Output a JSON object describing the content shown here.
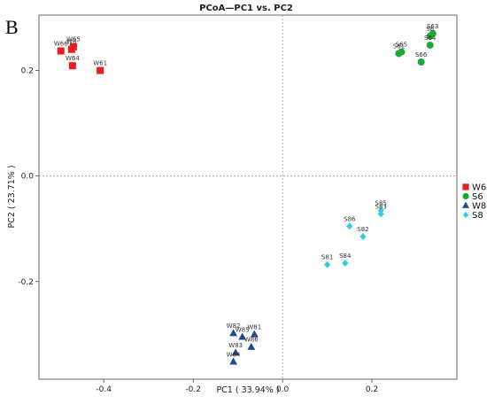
{
  "panel_label": "B",
  "chart_data": {
    "type": "scatter",
    "title": "PCoA—PC1 vs. PC2",
    "xlabel": "PC1 ( 33.94% )",
    "ylabel": "PC2 ( 23.71% )",
    "xlim": [
      -0.545,
      0.39
    ],
    "ylim": [
      -0.385,
      0.305
    ],
    "x_ticks": [
      {
        "value": -0.4,
        "label": "-0.4"
      },
      {
        "value": -0.2,
        "label": "-0.2"
      },
      {
        "value": 0.0,
        "label": "0.0"
      },
      {
        "value": 0.2,
        "label": "0.2"
      }
    ],
    "y_ticks": [
      {
        "value": 0.2,
        "label": "0.2"
      },
      {
        "value": 0.0,
        "label": "0.0"
      },
      {
        "value": -0.2,
        "label": "-0.2"
      }
    ],
    "reference_lines": {
      "x": 0,
      "y": 0
    },
    "legend_position": "right",
    "series": [
      {
        "name": "W6",
        "color": "#ee1c1c",
        "marker": "square",
        "points": [
          {
            "label": "W66",
            "x": -0.496,
            "y": 0.237
          },
          {
            "label": "W65",
            "x": -0.468,
            "y": 0.245
          },
          {
            "label": "W6",
            "x": -0.472,
            "y": 0.24
          },
          {
            "label": "W64",
            "x": -0.47,
            "y": 0.209
          },
          {
            "label": "W61",
            "x": -0.408,
            "y": 0.2
          }
        ]
      },
      {
        "name": "S6",
        "color": "#1aa83a",
        "marker": "circle",
        "points": [
          {
            "label": "S63",
            "x": 0.336,
            "y": 0.27
          },
          {
            "label": "S6",
            "x": 0.33,
            "y": 0.265
          },
          {
            "label": "S64",
            "x": 0.33,
            "y": 0.248
          },
          {
            "label": "S61",
            "x": 0.26,
            "y": 0.232
          },
          {
            "label": "S65",
            "x": 0.266,
            "y": 0.235
          },
          {
            "label": "S66",
            "x": 0.31,
            "y": 0.216
          }
        ]
      },
      {
        "name": "W8",
        "color": "#1f4a8f",
        "marker": "triangle",
        "points": [
          {
            "label": "W82",
            "x": -0.11,
            "y": -0.298
          },
          {
            "label": "W85",
            "x": -0.09,
            "y": -0.305
          },
          {
            "label": "W81",
            "x": -0.063,
            "y": -0.3
          },
          {
            "label": "W86",
            "x": -0.07,
            "y": -0.324
          },
          {
            "label": "W83",
            "x": -0.105,
            "y": -0.335
          },
          {
            "label": "W84",
            "x": -0.11,
            "y": -0.352
          }
        ]
      },
      {
        "name": "S8",
        "color": "#2fcfe0",
        "marker": "diamond",
        "points": [
          {
            "label": "S85",
            "x": 0.22,
            "y": -0.065
          },
          {
            "label": "S83",
            "x": 0.22,
            "y": -0.072
          },
          {
            "label": "S86",
            "x": 0.15,
            "y": -0.095
          },
          {
            "label": "S82",
            "x": 0.18,
            "y": -0.115
          },
          {
            "label": "S81",
            "x": 0.1,
            "y": -0.168
          },
          {
            "label": "S84",
            "x": 0.14,
            "y": -0.165
          }
        ]
      }
    ]
  }
}
